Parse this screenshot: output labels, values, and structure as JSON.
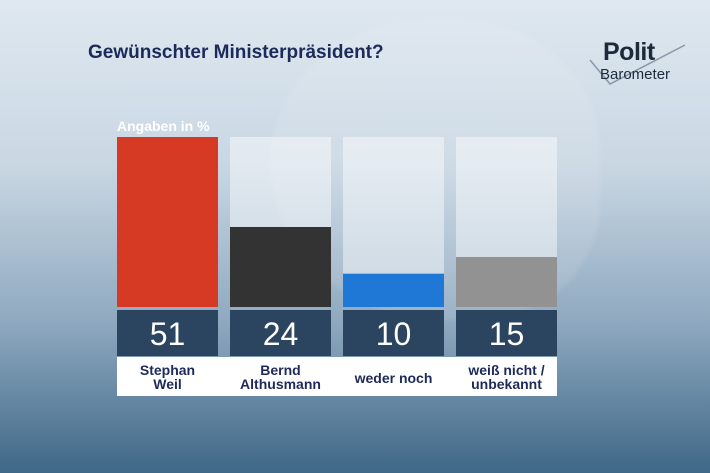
{
  "title": "Gewünschter Ministerpräsident?",
  "logo": {
    "line1": "Polit",
    "line2": "Barometer"
  },
  "unit_label": "Angaben in %",
  "colors": {
    "title": "#1d2a5a",
    "value_box": "#2b4560",
    "label_bg": "#ffffff",
    "label_text": "#1d2a5a",
    "track": "rgba(255,255,255,0.45)"
  },
  "chart_data": {
    "type": "bar",
    "title": "Gewünschter Ministerpräsident?",
    "unit": "Angaben in %",
    "categories": [
      [
        "Stephan",
        "Weil"
      ],
      [
        "Bernd",
        "Althusmann"
      ],
      [
        "weder noch"
      ],
      [
        "weiß nicht /",
        "unbekannt"
      ]
    ],
    "values": [
      51,
      24,
      10,
      15
    ],
    "colors": [
      "#d63a24",
      "#333333",
      "#1f78d6",
      "#929292"
    ],
    "ylim": [
      0,
      51
    ]
  }
}
